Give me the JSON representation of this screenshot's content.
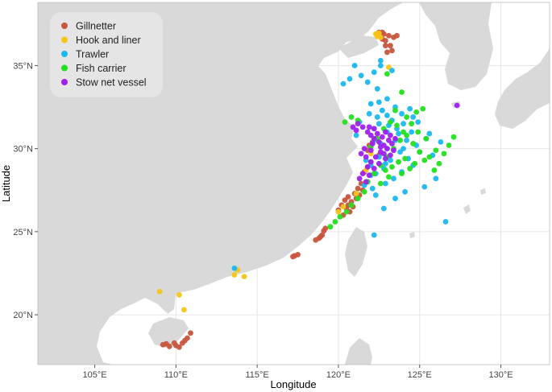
{
  "figure": {
    "xlabel": "Longitude",
    "ylabel": "Latitude",
    "colors": {
      "sea": "#ffffff",
      "land": "#d9d9d9",
      "grid": "#e6e6e6",
      "legend_bg": "#e5e5e5"
    }
  },
  "chart_data": {
    "type": "scatter",
    "xlim": [
      101.5,
      133.0
    ],
    "ylim": [
      17.0,
      38.8
    ],
    "grid": true,
    "legend_position": "top-left",
    "x_ticks": [
      {
        "value": 105,
        "label": "105°E"
      },
      {
        "value": 110,
        "label": "110°E"
      },
      {
        "value": 115,
        "label": "115°E"
      },
      {
        "value": 120,
        "label": "120°E"
      },
      {
        "value": 125,
        "label": "125°E"
      },
      {
        "value": 130,
        "label": "130°E"
      }
    ],
    "y_ticks": [
      {
        "value": 20,
        "label": "20°N"
      },
      {
        "value": 25,
        "label": "25°N"
      },
      {
        "value": 30,
        "label": "30°N"
      },
      {
        "value": 35,
        "label": "35°N"
      }
    ],
    "series": [
      {
        "name": "Gillnetter",
        "color": "#c8553d",
        "points": [
          [
            109.2,
            18.2
          ],
          [
            109.6,
            18.1
          ],
          [
            110.0,
            18.15
          ],
          [
            110.4,
            18.3
          ],
          [
            110.7,
            18.6
          ],
          [
            110.9,
            18.9
          ],
          [
            110.2,
            18.05
          ],
          [
            109.4,
            18.25
          ],
          [
            109.9,
            18.3
          ],
          [
            110.55,
            18.45
          ],
          [
            117.3,
            23.55
          ],
          [
            117.5,
            23.62
          ],
          [
            117.2,
            23.5
          ],
          [
            118.6,
            24.5
          ],
          [
            118.8,
            24.6
          ],
          [
            119.0,
            24.8
          ],
          [
            119.1,
            25.05
          ],
          [
            119.2,
            25.2
          ],
          [
            118.9,
            24.7
          ],
          [
            120.0,
            26.3
          ],
          [
            120.2,
            26.6
          ],
          [
            120.4,
            26.9
          ],
          [
            120.6,
            27.1
          ],
          [
            120.5,
            26.4
          ],
          [
            120.8,
            26.8
          ],
          [
            121.0,
            27.3
          ],
          [
            121.2,
            27.6
          ],
          [
            121.4,
            27.9
          ],
          [
            120.7,
            26.2
          ],
          [
            120.9,
            26.5
          ],
          [
            121.1,
            27.0
          ],
          [
            121.3,
            27.2
          ],
          [
            121.5,
            27.5
          ],
          [
            120.3,
            26.0
          ],
          [
            120.6,
            26.6
          ],
          [
            121.9,
            30.2
          ],
          [
            122.1,
            30.4
          ],
          [
            122.3,
            30.6
          ],
          [
            121.8,
            29.9
          ],
          [
            122.5,
            29.6
          ],
          [
            122.0,
            29.2
          ],
          [
            121.6,
            28.6
          ],
          [
            121.8,
            28.9
          ],
          [
            122.4,
            36.9
          ],
          [
            122.6,
            36.8
          ],
          [
            122.8,
            36.9
          ],
          [
            122.7,
            36.6
          ],
          [
            122.9,
            36.5
          ],
          [
            123.1,
            36.8
          ],
          [
            123.4,
            36.7
          ],
          [
            123.6,
            36.8
          ],
          [
            122.9,
            36.2
          ],
          [
            123.2,
            36.2
          ],
          [
            123.0,
            35.8
          ],
          [
            123.3,
            35.9
          ],
          [
            122.5,
            37.0
          ],
          [
            122.7,
            37.0
          ]
        ]
      },
      {
        "name": "Hook and liner",
        "color": "#f5c518",
        "points": [
          [
            122.3,
            36.9
          ],
          [
            122.5,
            36.95
          ],
          [
            122.6,
            36.7
          ],
          [
            122.4,
            36.75
          ],
          [
            123.1,
            34.9
          ],
          [
            120.0,
            26.2
          ],
          [
            120.3,
            26.5
          ],
          [
            121.1,
            27.3
          ],
          [
            121.7,
            28.7
          ],
          [
            122.0,
            29.7
          ],
          [
            113.8,
            22.7
          ],
          [
            113.6,
            22.4
          ],
          [
            110.2,
            21.2
          ],
          [
            110.5,
            20.3
          ],
          [
            109.0,
            21.4
          ],
          [
            114.2,
            22.3
          ]
        ]
      },
      {
        "name": "Trawler",
        "color": "#1ab8f0",
        "points": [
          [
            122.0,
            29.0
          ],
          [
            122.5,
            29.5
          ],
          [
            123.0,
            30.0
          ],
          [
            123.5,
            30.5
          ],
          [
            123.0,
            31.0
          ],
          [
            122.5,
            31.5
          ],
          [
            123.0,
            32.0
          ],
          [
            123.5,
            32.5
          ],
          [
            124.0,
            31.5
          ],
          [
            124.0,
            30.0
          ],
          [
            122.3,
            28.5
          ],
          [
            122.8,
            28.8
          ],
          [
            123.2,
            29.3
          ],
          [
            123.8,
            29.8
          ],
          [
            124.2,
            30.5
          ],
          [
            124.5,
            31.0
          ],
          [
            122.2,
            31.2
          ],
          [
            122.7,
            32.3
          ],
          [
            123.3,
            31.7
          ],
          [
            122.2,
            30.5
          ],
          [
            121.8,
            28.0
          ],
          [
            122.1,
            27.6
          ],
          [
            121.6,
            27.8
          ],
          [
            123.6,
            31.2
          ],
          [
            124.8,
            30.2
          ],
          [
            124.6,
            29.0
          ],
          [
            125.0,
            29.8
          ],
          [
            123.9,
            28.6
          ],
          [
            123.4,
            28.2
          ],
          [
            122.9,
            27.9
          ],
          [
            122.5,
            32.8
          ],
          [
            123.0,
            33.0
          ],
          [
            122.4,
            33.6
          ],
          [
            121.8,
            34.0
          ],
          [
            121.4,
            34.4
          ],
          [
            122.2,
            34.6
          ],
          [
            122.6,
            35.0
          ],
          [
            123.3,
            34.7
          ],
          [
            120.7,
            34.2
          ],
          [
            120.3,
            33.9
          ],
          [
            124.4,
            32.4
          ],
          [
            124.9,
            31.6
          ],
          [
            125.4,
            30.6
          ],
          [
            125.8,
            29.6
          ],
          [
            126.0,
            28.2
          ],
          [
            125.3,
            27.7
          ],
          [
            124.1,
            27.4
          ],
          [
            123.5,
            27.0
          ],
          [
            122.8,
            26.4
          ],
          [
            126.6,
            25.6
          ],
          [
            121.1,
            30.8
          ],
          [
            121.3,
            31.6
          ],
          [
            121.9,
            32.1
          ],
          [
            124.3,
            29.4
          ],
          [
            123.7,
            30.9
          ],
          [
            122.9,
            29.1
          ],
          [
            122.6,
            30.3
          ],
          [
            123.1,
            31.4
          ],
          [
            123.9,
            32.1
          ],
          [
            122.3,
            27.2
          ],
          [
            122.0,
            28.4
          ],
          [
            121.7,
            29.3
          ],
          [
            122.4,
            31.9
          ],
          [
            122.0,
            32.7
          ],
          [
            124.6,
            31.9
          ],
          [
            125.6,
            30.9
          ],
          [
            126.3,
            30.4
          ],
          [
            122.2,
            24.8
          ],
          [
            113.6,
            22.8
          ],
          [
            121.0,
            35.0
          ],
          [
            122.6,
            35.3
          ]
        ]
      },
      {
        "name": "Fish carrier",
        "color": "#22e01e",
        "points": [
          [
            121.8,
            28.0
          ],
          [
            122.2,
            28.5
          ],
          [
            122.6,
            29.0
          ],
          [
            123.0,
            29.5
          ],
          [
            123.4,
            30.0
          ],
          [
            123.8,
            30.5
          ],
          [
            124.2,
            30.8
          ],
          [
            124.6,
            30.3
          ],
          [
            125.0,
            29.8
          ],
          [
            125.6,
            29.5
          ],
          [
            126.0,
            29.9
          ],
          [
            126.5,
            29.7
          ],
          [
            126.8,
            30.2
          ],
          [
            127.1,
            30.7
          ],
          [
            125.4,
            30.6
          ],
          [
            124.9,
            31.0
          ],
          [
            124.5,
            31.5
          ],
          [
            124.2,
            31.9
          ],
          [
            124.8,
            32.2
          ],
          [
            125.2,
            32.4
          ],
          [
            123.6,
            31.4
          ],
          [
            123.2,
            31.6
          ],
          [
            122.8,
            31.2
          ],
          [
            122.4,
            30.6
          ],
          [
            122.0,
            30.1
          ],
          [
            122.9,
            28.7
          ],
          [
            123.3,
            28.9
          ],
          [
            123.7,
            29.2
          ],
          [
            124.1,
            29.4
          ],
          [
            124.4,
            28.8
          ],
          [
            123.9,
            28.5
          ],
          [
            123.1,
            28.3
          ],
          [
            122.6,
            27.9
          ],
          [
            121.6,
            27.4
          ],
          [
            121.2,
            27.0
          ],
          [
            120.8,
            26.6
          ],
          [
            120.5,
            26.2
          ],
          [
            120.1,
            25.9
          ],
          [
            119.8,
            25.6
          ],
          [
            119.5,
            25.3
          ],
          [
            120.4,
            31.6
          ],
          [
            120.8,
            31.9
          ],
          [
            121.2,
            31.7
          ],
          [
            124.7,
            29.1
          ],
          [
            125.3,
            29.3
          ],
          [
            126.2,
            29.1
          ],
          [
            123.5,
            32.3
          ],
          [
            123.9,
            33.4
          ],
          [
            123.0,
            34.5
          ],
          [
            125.9,
            28.7
          ],
          [
            124.0,
            31.0
          ]
        ]
      },
      {
        "name": "Stow net vessel",
        "color": "#a020f0",
        "points": [
          [
            121.2,
            31.5
          ],
          [
            121.5,
            31.3
          ],
          [
            121.8,
            31.0
          ],
          [
            122.0,
            30.8
          ],
          [
            122.2,
            30.6
          ],
          [
            122.5,
            30.4
          ],
          [
            122.8,
            30.2
          ],
          [
            123.0,
            30.0
          ],
          [
            122.6,
            29.8
          ],
          [
            122.3,
            29.5
          ],
          [
            122.0,
            29.2
          ],
          [
            121.8,
            28.9
          ],
          [
            121.5,
            28.5
          ],
          [
            121.3,
            28.2
          ],
          [
            122.4,
            30.9
          ],
          [
            122.7,
            30.7
          ],
          [
            123.1,
            30.5
          ],
          [
            123.3,
            30.3
          ],
          [
            122.9,
            29.4
          ],
          [
            122.5,
            29.1
          ],
          [
            122.2,
            28.8
          ],
          [
            121.9,
            28.4
          ],
          [
            121.7,
            28.0
          ],
          [
            123.4,
            29.9
          ],
          [
            123.2,
            29.6
          ],
          [
            122.1,
            30.3
          ],
          [
            121.6,
            30.0
          ],
          [
            121.4,
            29.7
          ],
          [
            121.9,
            31.3
          ],
          [
            122.2,
            31.2
          ],
          [
            122.9,
            31.0
          ],
          [
            123.2,
            30.8
          ],
          [
            123.5,
            30.6
          ],
          [
            122.0,
            29.9
          ],
          [
            121.7,
            29.5
          ],
          [
            122.6,
            30.1
          ],
          [
            122.8,
            29.7
          ],
          [
            121.1,
            31.1
          ],
          [
            120.9,
            31.3
          ],
          [
            127.3,
            32.6
          ]
        ]
      }
    ]
  }
}
